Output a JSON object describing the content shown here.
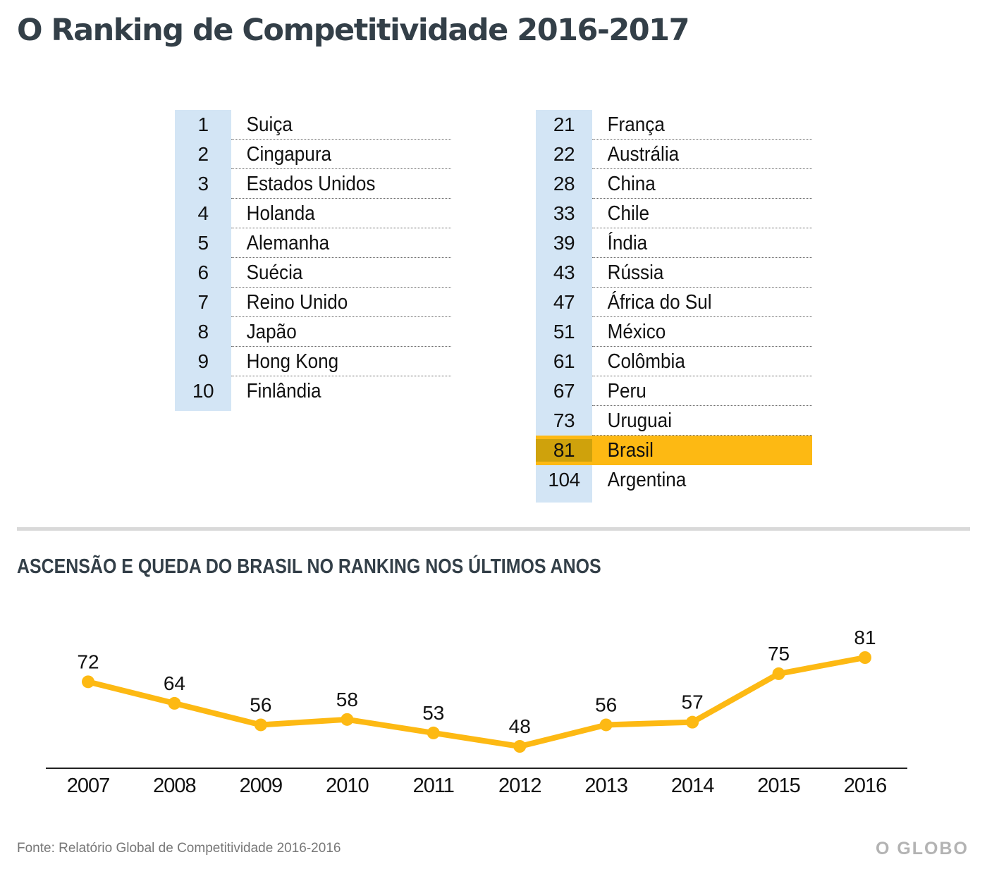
{
  "header": {
    "title": "O Ranking de Competitividade 2016-2017"
  },
  "ranking": {
    "left": [
      {
        "rank": "1",
        "country": "Suiça"
      },
      {
        "rank": "2",
        "country": "Cingapura"
      },
      {
        "rank": "3",
        "country": "Estados Unidos"
      },
      {
        "rank": "4",
        "country": "Holanda"
      },
      {
        "rank": "5",
        "country": "Alemanha"
      },
      {
        "rank": "6",
        "country": "Suécia"
      },
      {
        "rank": "7",
        "country": "Reino Unido"
      },
      {
        "rank": "8",
        "country": "Japão"
      },
      {
        "rank": "9",
        "country": "Hong Kong"
      },
      {
        "rank": "10",
        "country": "Finlândia"
      }
    ],
    "right": [
      {
        "rank": "21",
        "country": "França"
      },
      {
        "rank": "22",
        "country": "Austrália"
      },
      {
        "rank": "28",
        "country": "China"
      },
      {
        "rank": "33",
        "country": "Chile"
      },
      {
        "rank": "39",
        "country": "Índia"
      },
      {
        "rank": "43",
        "country": "Rússia"
      },
      {
        "rank": "47",
        "country": "África do Sul"
      },
      {
        "rank": "51",
        "country": "México"
      },
      {
        "rank": "61",
        "country": "Colômbia"
      },
      {
        "rank": "67",
        "country": "Peru"
      },
      {
        "rank": "73",
        "country": "Uruguai"
      },
      {
        "rank": "81",
        "country": "Brasil",
        "highlight": true
      },
      {
        "rank": "104",
        "country": "Argentina"
      }
    ]
  },
  "chart_section": {
    "title": "ASCENSÃO E QUEDA DO BRASIL NO RANKING NOS ÚLTIMOS ANOS"
  },
  "chart_data": {
    "type": "line",
    "x": [
      "2007",
      "2008",
      "2009",
      "2010",
      "2011",
      "2012",
      "2013",
      "2014",
      "2015",
      "2016"
    ],
    "series": [
      {
        "values": [
          72,
          64,
          56,
          58,
          53,
          48,
          56,
          57,
          75,
          81
        ]
      }
    ],
    "data_labels": [
      "72",
      "64",
      "56",
      "58",
      "53",
      "48",
      "56",
      "57",
      "75",
      "81"
    ],
    "line_color": "#fdb913",
    "grid": false,
    "xlabel": "",
    "ylabel": ""
  },
  "footer": {
    "source": "Fonte: Relatório Global de Competitividade 2016-2016",
    "logo": "O GLOBO"
  },
  "colors": {
    "title": "#333f48",
    "rank_bg": "#d3e5f5",
    "highlight": "#fdb913",
    "highlight_rank": "#cfa20c"
  }
}
